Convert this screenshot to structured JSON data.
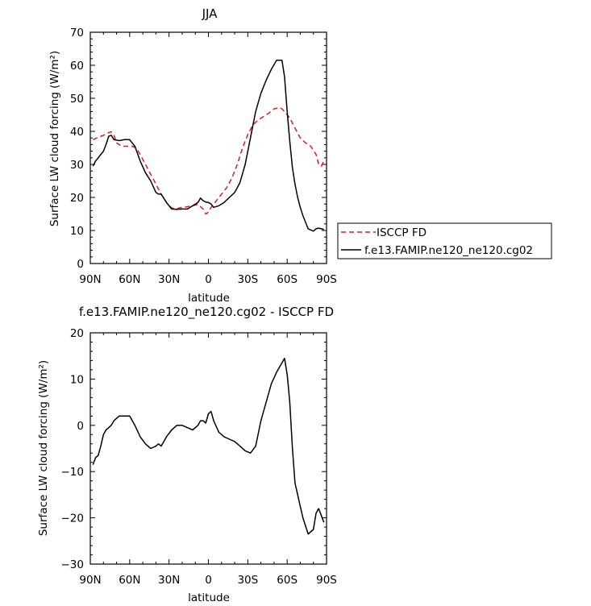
{
  "chart_data": [
    {
      "type": "line",
      "title": "JJA",
      "xlabel": "latitude",
      "ylabel": "Surface LW cloud forcing (W/m²)",
      "x_ticks": [
        90,
        60,
        30,
        0,
        -30,
        -60,
        -90
      ],
      "x_tick_labels": [
        "90N",
        "60N",
        "30N",
        "0",
        "30S",
        "60S",
        "90S"
      ],
      "xlim": [
        90,
        -90
      ],
      "ylim": [
        0,
        70
      ],
      "y_ticks": [
        0,
        10,
        20,
        30,
        40,
        50,
        60,
        70
      ],
      "y_tick_labels": [
        "0",
        "10",
        "20",
        "30",
        "40",
        "50",
        "60",
        "70"
      ],
      "legend_position": "right",
      "series": [
        {
          "name": "ISCCP FD",
          "color": "#e8181c",
          "dash": "dashed",
          "x": [
            88,
            84,
            80,
            76,
            74,
            72,
            70,
            66,
            62,
            58,
            55,
            52,
            48,
            44,
            40,
            36,
            32,
            28,
            24,
            20,
            16,
            12,
            8,
            4,
            2,
            0,
            -2,
            -6,
            -10,
            -14,
            -18,
            -22,
            -26,
            -30,
            -34,
            -38,
            -42,
            -46,
            -50,
            -54,
            -56,
            -58,
            -62,
            -66,
            -70,
            -74,
            -78,
            -82,
            -84,
            -86,
            -88
          ],
          "y": [
            37.5,
            38.2,
            38.8,
            39.6,
            39.9,
            38.8,
            36.5,
            35.5,
            35.5,
            35.5,
            35.0,
            33.0,
            30.0,
            27.0,
            24.0,
            21.0,
            18.5,
            16.8,
            16.6,
            17.0,
            17.2,
            17.5,
            17.9,
            16.5,
            15.0,
            15.5,
            17.0,
            19.0,
            21.0,
            23.0,
            26.0,
            30.0,
            35.0,
            39.0,
            42.0,
            43.5,
            44.5,
            45.5,
            46.8,
            47.2,
            46.8,
            46.0,
            44.0,
            41.0,
            38.0,
            36.5,
            35.5,
            33.0,
            30.0,
            29.5,
            31.0
          ]
        },
        {
          "name": "f.e13.FAMIP.ne120_ne120.cg02",
          "color": "#000000",
          "dash": "solid",
          "x": [
            88,
            86,
            84,
            82,
            80,
            78,
            76,
            74,
            72,
            68,
            64,
            60,
            56,
            52,
            48,
            44,
            40,
            38,
            36,
            32,
            28,
            24,
            20,
            16,
            12,
            8,
            6,
            4,
            2,
            0,
            -2,
            -4,
            -8,
            -12,
            -16,
            -20,
            -24,
            -28,
            -32,
            -36,
            -40,
            -44,
            -48,
            -52,
            -56,
            -58,
            -60,
            -62,
            -64,
            -66,
            -68,
            -70,
            -72,
            -76,
            -80,
            -82,
            -84,
            -86,
            -88
          ],
          "y": [
            29.5,
            31.0,
            32.0,
            33.0,
            34.0,
            36.0,
            38.5,
            38.8,
            37.5,
            37.2,
            37.5,
            37.5,
            35.5,
            31.0,
            27.5,
            25.0,
            21.5,
            21.0,
            21.0,
            18.5,
            16.5,
            16.4,
            16.5,
            16.5,
            17.5,
            18.5,
            19.8,
            19.0,
            18.6,
            18.5,
            18.0,
            17.0,
            17.5,
            18.5,
            20.0,
            21.5,
            24.5,
            30.0,
            38.0,
            46.0,
            51.5,
            55.5,
            58.8,
            61.5,
            61.5,
            56.5,
            46.0,
            37.0,
            29.0,
            24.0,
            20.0,
            17.0,
            14.5,
            10.5,
            9.8,
            10.5,
            10.7,
            10.5,
            10.3
          ]
        }
      ]
    },
    {
      "type": "line",
      "title": "f.e13.FAMIP.ne120_ne120.cg02 - ISCCP FD",
      "xlabel": "latitude",
      "ylabel": "Surface LW cloud forcing (W/m²)",
      "x_ticks": [
        90,
        60,
        30,
        0,
        -30,
        -60,
        -90
      ],
      "x_tick_labels": [
        "90N",
        "60N",
        "30N",
        "0",
        "30S",
        "60S",
        "90S"
      ],
      "xlim": [
        90,
        -90
      ],
      "ylim": [
        -30,
        20
      ],
      "y_ticks": [
        -30,
        -20,
        -10,
        0,
        10,
        20
      ],
      "y_tick_labels": [
        "−30",
        "−20",
        "−10",
        "0",
        "10",
        "20"
      ],
      "series": [
        {
          "color": "#000000",
          "dash": "solid",
          "x": [
            88,
            86,
            84,
            82,
            80,
            78,
            76,
            74,
            72,
            68,
            64,
            60,
            56,
            52,
            48,
            44,
            40,
            38,
            36,
            32,
            28,
            24,
            20,
            16,
            12,
            8,
            6,
            4,
            2,
            0,
            -2,
            -4,
            -8,
            -12,
            -16,
            -20,
            -24,
            -28,
            -32,
            -36,
            -40,
            -44,
            -48,
            -52,
            -56,
            -58,
            -60,
            -62,
            -64,
            -66,
            -68,
            -70,
            -72,
            -76,
            -80,
            -82,
            -84,
            -86,
            -88
          ],
          "y": [
            -8.5,
            -7.0,
            -6.5,
            -4.5,
            -2.0,
            -1.0,
            -0.5,
            0.0,
            1.0,
            2.0,
            2.0,
            2.0,
            0.0,
            -2.5,
            -4.0,
            -5.0,
            -4.5,
            -4.0,
            -4.5,
            -2.5,
            -1.0,
            0.0,
            0.0,
            -0.5,
            -1.0,
            0.0,
            1.0,
            1.0,
            0.5,
            2.5,
            3.0,
            1.0,
            -1.5,
            -2.5,
            -3.0,
            -3.5,
            -4.5,
            -5.5,
            -6.0,
            -4.5,
            1.0,
            5.0,
            9.0,
            11.5,
            13.5,
            14.5,
            11.0,
            5.0,
            -5.0,
            -12.5,
            -15.0,
            -17.5,
            -20.0,
            -23.5,
            -22.5,
            -19.0,
            -18.0,
            -19.5,
            -21.0
          ]
        }
      ]
    }
  ]
}
